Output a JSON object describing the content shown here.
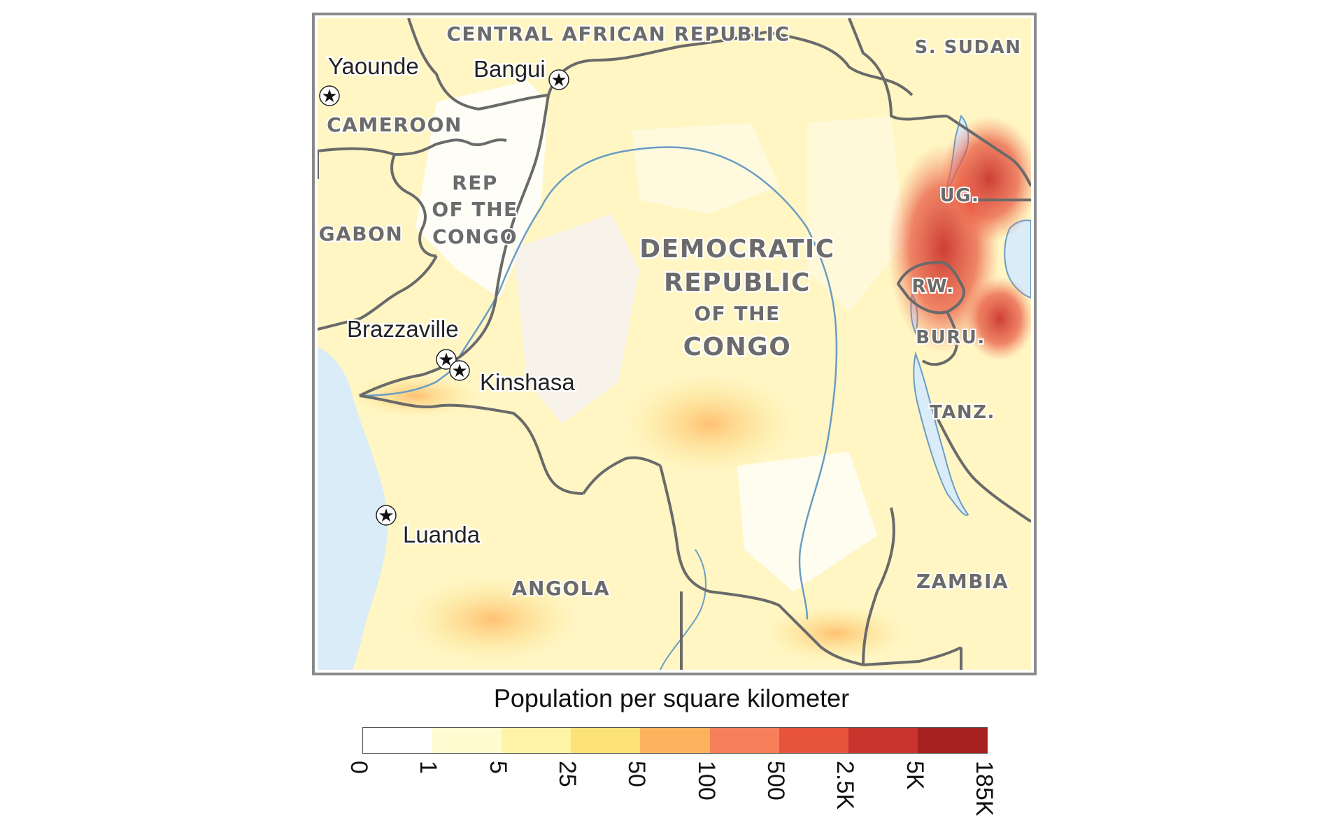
{
  "map": {
    "countries": [
      {
        "id": "car",
        "name": "CENTRAL AFRICAN REPUBLIC"
      },
      {
        "id": "ssudan",
        "name": "S. SUDAN"
      },
      {
        "id": "cameroon",
        "name": "CAMEROON"
      },
      {
        "id": "gabon",
        "name": "GABON"
      },
      {
        "id": "rep-congo",
        "lines": [
          "REP",
          "OF THE",
          "CONGO"
        ]
      },
      {
        "id": "drc",
        "lines": [
          "DEMOCRATIC",
          "REPUBLIC",
          "OF THE",
          "CONGO"
        ]
      },
      {
        "id": "uganda",
        "name": "UG."
      },
      {
        "id": "rwanda",
        "name": "RW."
      },
      {
        "id": "burundi",
        "name": "BURU."
      },
      {
        "id": "tanzania",
        "name": "TANZ."
      },
      {
        "id": "zambia",
        "name": "ZAMBIA"
      },
      {
        "id": "angola",
        "name": "ANGOLA"
      }
    ],
    "capitals": [
      "Yaounde",
      "Bangui",
      "Brazzaville",
      "Kinshasa",
      "Luanda"
    ],
    "colors": {
      "border": "#6a6a6a",
      "water": "#d9ecf7",
      "river": "#6a9cc4",
      "frame": "#8a8a8a"
    }
  },
  "legend": {
    "title": "Population per square kilometer",
    "ticks": [
      "0",
      "1",
      "5",
      "25",
      "50",
      "100",
      "500",
      "2.5K",
      "5K",
      "185K"
    ],
    "colors": [
      "#ffffff",
      "#fffbd0",
      "#fff3a6",
      "#fde27a",
      "#fdb35e",
      "#f7805a",
      "#e8533d",
      "#c9352e",
      "#a52121",
      "#7b1416"
    ]
  }
}
